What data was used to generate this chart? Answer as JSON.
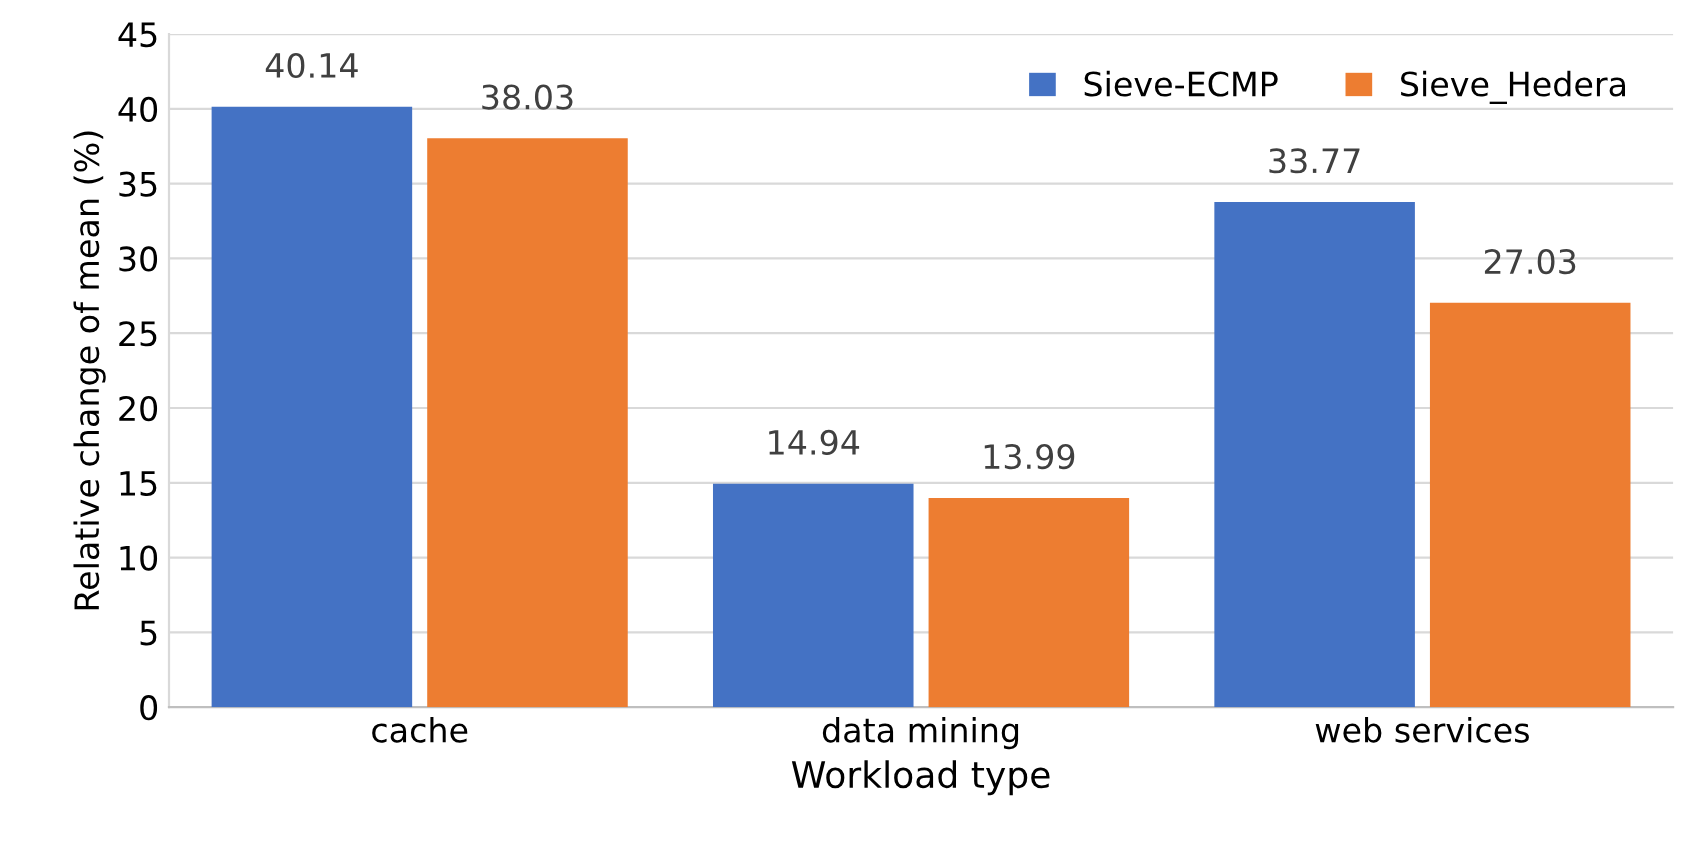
{
  "chart_data": {
    "type": "bar",
    "xlabel": "Workload type",
    "ylabel": "Relative change of mean (%)",
    "categories": [
      "cache",
      "data mining",
      "web services"
    ],
    "series": [
      {
        "name": "Sieve-ECMP",
        "color": "#4472c4",
        "values": [
          40.14,
          14.94,
          33.77
        ]
      },
      {
        "name": "Sieve_Hedera",
        "color": "#ed7d31",
        "values": [
          38.03,
          13.99,
          27.03
        ]
      }
    ],
    "ylim": [
      0,
      45
    ],
    "yticks": [
      0,
      5,
      10,
      15,
      20,
      25,
      30,
      35,
      40,
      45
    ],
    "grid": "y",
    "legend": "top right",
    "data_labels": true
  }
}
